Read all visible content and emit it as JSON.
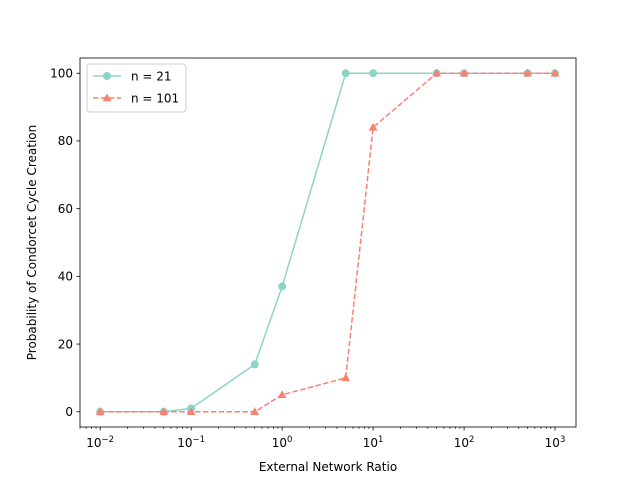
{
  "chart_data": {
    "type": "line",
    "title": "",
    "xlabel": "External Network Ratio",
    "ylabel": "Probability of Condorcet Cycle Creation",
    "xscale": "log",
    "xlim": [
      0.006,
      1700
    ],
    "ylim": [
      -4.5,
      104.5
    ],
    "x_ticks": [
      {
        "value": 0.01,
        "base": "10",
        "exp": "−2"
      },
      {
        "value": 0.1,
        "base": "10",
        "exp": "−1"
      },
      {
        "value": 1,
        "base": "10",
        "exp": "0"
      },
      {
        "value": 10,
        "base": "10",
        "exp": "1"
      },
      {
        "value": 100,
        "base": "10",
        "exp": "2"
      },
      {
        "value": 1000,
        "base": "10",
        "exp": "3"
      }
    ],
    "y_ticks": [
      {
        "value": 0,
        "label": "0"
      },
      {
        "value": 20,
        "label": "20"
      },
      {
        "value": 40,
        "label": "40"
      },
      {
        "value": 60,
        "label": "60"
      },
      {
        "value": 80,
        "label": "80"
      },
      {
        "value": 100,
        "label": "100"
      }
    ],
    "grid": false,
    "legend_position": "top-left",
    "series": [
      {
        "name": "n = 21",
        "color": "#8dd3c7",
        "marker": "circle",
        "linestyle": "solid",
        "x": [
          0.01,
          0.05,
          0.1,
          0.5,
          1,
          5,
          10,
          50,
          100,
          500,
          1000
        ],
        "y": [
          0,
          0,
          1,
          14,
          37,
          100,
          100,
          100,
          100,
          100,
          100
        ]
      },
      {
        "name": "n = 101",
        "color": "#fa8072",
        "marker": "triangle",
        "linestyle": "dashed",
        "x": [
          0.01,
          0.05,
          0.1,
          0.5,
          1,
          5,
          10,
          50,
          100,
          500,
          1000
        ],
        "y": [
          0,
          0,
          0,
          0,
          5,
          10,
          84,
          100,
          100,
          100,
          100
        ]
      }
    ]
  }
}
